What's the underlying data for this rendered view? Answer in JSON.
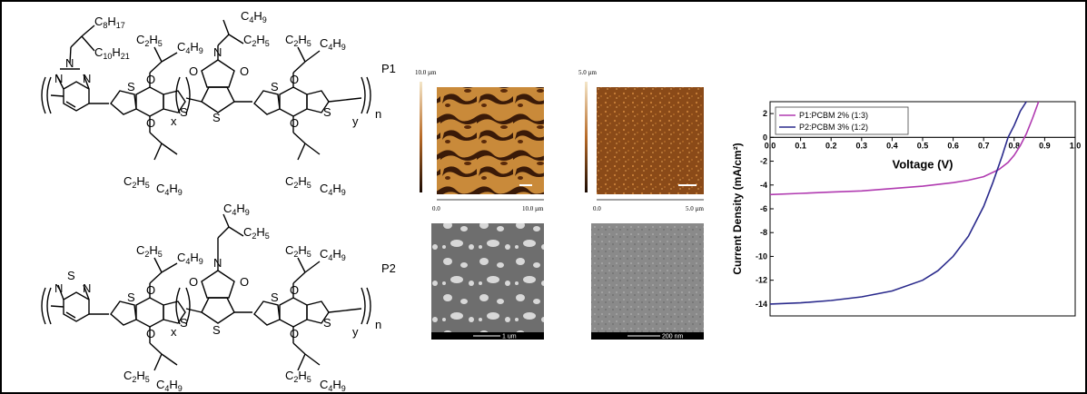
{
  "structures": {
    "p1": {
      "label": "P1",
      "side_chains": [
        {
          "main": "C",
          "sub": "8",
          "main2": "H",
          "sub2": "17"
        },
        {
          "main": "C",
          "sub": "10",
          "main2": "H",
          "sub2": "21"
        },
        {
          "main": "C",
          "sub": "2",
          "main2": "H",
          "sub2": "5"
        },
        {
          "main": "C",
          "sub": "4",
          "main2": "H",
          "sub2": "9"
        },
        {
          "main": "C",
          "sub": "4",
          "main2": "H",
          "sub2": "9"
        },
        {
          "main": "C",
          "sub": "2",
          "main2": "H",
          "sub2": "5"
        },
        {
          "main": "C",
          "sub": "2",
          "main2": "H",
          "sub2": "5"
        },
        {
          "main": "C",
          "sub": "4",
          "main2": "H",
          "sub2": "9"
        },
        {
          "main": "C",
          "sub": "2",
          "main2": "H",
          "sub2": "5"
        },
        {
          "main": "C",
          "sub": "4",
          "main2": "H",
          "sub2": "9"
        },
        {
          "main": "C",
          "sub": "2",
          "main2": "H",
          "sub2": "5"
        },
        {
          "main": "C",
          "sub": "4",
          "main2": "H",
          "sub2": "9"
        }
      ],
      "atoms": {
        "N": "N",
        "O": "O",
        "S": "S"
      },
      "repeat_x": "x",
      "repeat_y": "y",
      "repeat_n": "n"
    },
    "p2": {
      "label": "P2",
      "side_chains": [
        {
          "main": "C",
          "sub": "4",
          "main2": "H",
          "sub2": "9"
        },
        {
          "main": "C",
          "sub": "2",
          "main2": "H",
          "sub2": "5"
        },
        {
          "main": "C",
          "sub": "4",
          "main2": "H",
          "sub2": "9"
        },
        {
          "main": "C",
          "sub": "2",
          "main2": "H",
          "sub2": "5"
        },
        {
          "main": "C",
          "sub": "2",
          "main2": "H",
          "sub2": "5"
        },
        {
          "main": "C",
          "sub": "4",
          "main2": "H",
          "sub2": "9"
        },
        {
          "main": "C",
          "sub": "2",
          "main2": "H",
          "sub2": "5"
        },
        {
          "main": "C",
          "sub": "4",
          "main2": "H",
          "sub2": "9"
        },
        {
          "main": "C",
          "sub": "2",
          "main2": "H",
          "sub2": "5"
        },
        {
          "main": "C",
          "sub": "4",
          "main2": "H",
          "sub2": "9"
        }
      ],
      "atoms": {
        "N": "N",
        "O": "O",
        "S": "S"
      },
      "repeat_x": "x",
      "repeat_y": "y",
      "repeat_n": "n"
    }
  },
  "afm": {
    "p1": {
      "scale_top": "10.0 µm",
      "axis_left": "0.0",
      "axis_right": "10.0 µm"
    },
    "p2": {
      "scale_top": "5.0 µm",
      "axis_left": "0.0",
      "axis_right": "5.0 µm"
    }
  },
  "sem": {
    "p1": {
      "scale_bar": "1 um"
    },
    "p2": {
      "scale_bar": "200 nm"
    }
  },
  "colors": {
    "p1_curve": "#b03ab0",
    "p2_curve": "#2a2a8c",
    "afm_dark": "#3a1a08",
    "afm_light": "#c98a3a",
    "sem_bg": "#7a7a7a"
  },
  "chart_data": {
    "type": "line",
    "xlabel": "Voltage (V)",
    "ylabel": "Current Density (mA/cm²)",
    "xlim": [
      0,
      1.0
    ],
    "ylim": [
      -15,
      3
    ],
    "x_ticks": [
      "0.0",
      "0.1",
      "0.2",
      "0.3",
      "0.4",
      "0.5",
      "0.6",
      "0.7",
      "0.8",
      "0.9",
      "1.0"
    ],
    "y_ticks": [
      "2",
      "0",
      "-2",
      "-4",
      "-6",
      "-8",
      "-10",
      "-12",
      "-14"
    ],
    "legend_position": "top-left",
    "series": [
      {
        "name": "P1:PCBM 2% (1:3)",
        "x": [
          0.0,
          0.1,
          0.2,
          0.3,
          0.4,
          0.5,
          0.6,
          0.65,
          0.7,
          0.75,
          0.78,
          0.8,
          0.82,
          0.84,
          0.86,
          0.88
        ],
        "y": [
          -4.8,
          -4.7,
          -4.6,
          -4.5,
          -4.3,
          -4.1,
          -3.8,
          -3.6,
          -3.3,
          -2.7,
          -2.1,
          -1.5,
          -0.7,
          0.3,
          1.6,
          3.0
        ]
      },
      {
        "name": "P2:PCBM 3% (1:2)",
        "x": [
          0.0,
          0.1,
          0.2,
          0.3,
          0.4,
          0.5,
          0.55,
          0.6,
          0.65,
          0.7,
          0.73,
          0.76,
          0.78,
          0.8,
          0.82,
          0.84
        ],
        "y": [
          -14.0,
          -13.9,
          -13.7,
          -13.4,
          -12.9,
          -12.0,
          -11.2,
          -10.0,
          -8.3,
          -5.8,
          -3.8,
          -1.6,
          0.0,
          1.0,
          2.2,
          3.0
        ]
      }
    ]
  }
}
